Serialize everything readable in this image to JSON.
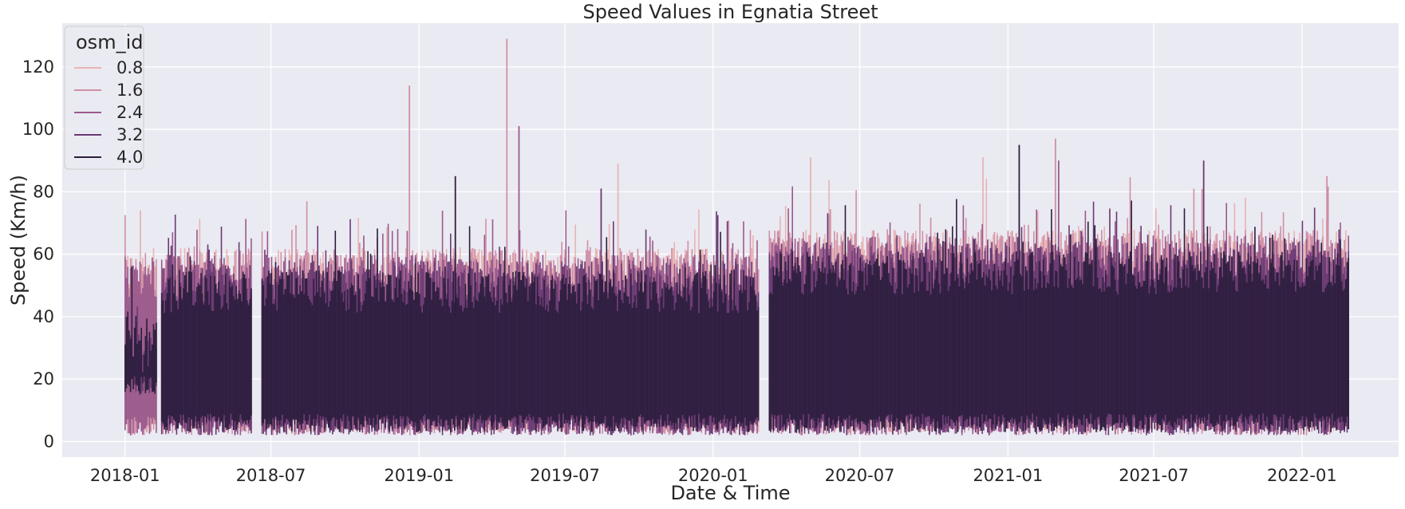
{
  "chart_data": {
    "type": "line",
    "title": "Speed Values in Egnatia Street",
    "xlabel": "Date & Time",
    "ylabel": "Speed (Km/h)",
    "x_ticks": [
      "2018-01",
      "2018-07",
      "2019-01",
      "2019-07",
      "2020-01",
      "2020-07",
      "2021-01",
      "2021-07",
      "2022-01"
    ],
    "y_ticks": [
      0,
      20,
      40,
      60,
      80,
      100,
      120
    ],
    "xlim": [
      "2017-10-15",
      "2022-05-01"
    ],
    "ylim": [
      -5,
      134
    ],
    "grid": true,
    "background": "#eaeaf2",
    "legend": {
      "title": "osm_id",
      "placement": "top-left",
      "entries": [
        "0.8",
        "1.6",
        "2.4",
        "3.2",
        "4.0"
      ]
    },
    "series": [
      {
        "name": "0.8",
        "color": "#e8b4b4",
        "typical_range": [
          3,
          62
        ],
        "peaks": [
          {
            "x": "2018-01-20",
            "y": 74
          },
          {
            "x": "2019-09-05",
            "y": 89
          },
          {
            "x": "2020-05-01",
            "y": 91
          },
          {
            "x": "2020-12-01",
            "y": 91
          }
        ]
      },
      {
        "name": "1.6",
        "color": "#d08fa6",
        "typical_range": [
          2,
          62
        ],
        "peaks": [
          {
            "x": "2018-12-20",
            "y": 114
          },
          {
            "x": "2019-04-20",
            "y": 129
          },
          {
            "x": "2021-03-01",
            "y": 97
          },
          {
            "x": "2022-02-01",
            "y": 85
          }
        ]
      },
      {
        "name": "2.4",
        "color": "#9a5a8c",
        "typical_range": [
          2,
          60
        ],
        "peaks": [
          {
            "x": "2019-05-05",
            "y": 101
          },
          {
            "x": "2021-03-05",
            "y": 90
          }
        ]
      },
      {
        "name": "3.2",
        "color": "#6a3a73",
        "typical_range": [
          2,
          58
        ],
        "peaks": [
          {
            "x": "2019-08-15",
            "y": 81
          },
          {
            "x": "2021-09-01",
            "y": 90
          }
        ]
      },
      {
        "name": "4.0",
        "color": "#2d1e3e",
        "typical_range": [
          3,
          55
        ],
        "peaks": [
          {
            "x": "2019-02-15",
            "y": 85
          },
          {
            "x": "2021-01-15",
            "y": 95
          }
        ]
      }
    ],
    "gaps": [
      {
        "from": "2018-02-10",
        "to": "2018-02-14"
      },
      {
        "from": "2018-06-08",
        "to": "2018-06-20"
      },
      {
        "from": "2020-02-28",
        "to": "2020-03-10"
      }
    ],
    "data_range": {
      "start": "2018-01-01",
      "end": "2022-02-28"
    }
  }
}
